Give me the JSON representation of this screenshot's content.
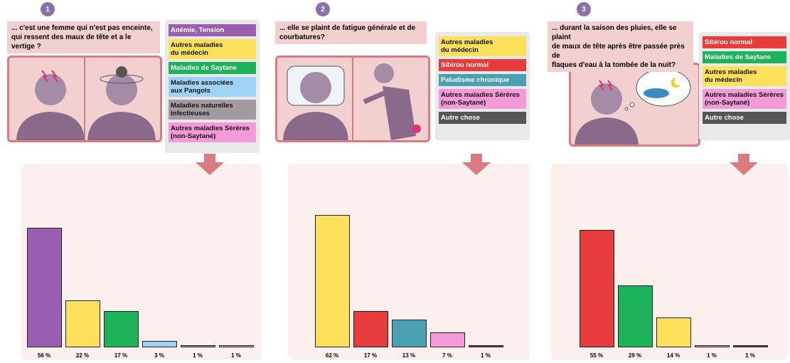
{
  "chart_data": [
    {
      "type": "bar",
      "panel_label": "1",
      "title": "... c'est une femme qui n'est pas enceinte,\nqui ressent des maux de tête et a le vertige ?",
      "categories": [
        "Anémie, Tension",
        "Autres maladies\ndu médecin",
        "Maladies de Saytane",
        "Maladies associées\naux Pangols",
        "Maladies naturelles\ninfectieuses",
        "Autres maladies Sérères\n(non-Saytané)"
      ],
      "colors": [
        "#9a5fb0",
        "#fde05a",
        "#1db35a",
        "#9fd3f5",
        "#a39aa1",
        "#f49ad8"
      ],
      "values": [
        56,
        22,
        17,
        3,
        1,
        1
      ],
      "value_labels": [
        "56 %",
        "22 %",
        "17 %",
        "3 %",
        "1 %",
        "1 %"
      ]
    },
    {
      "type": "bar",
      "panel_label": "2",
      "title": "... elle se plaint de fatigue générale et de\ncourbatures?",
      "categories": [
        "Autres maladies\ndu médecin",
        "Sibirou normal",
        "Paludisme chronique",
        "Autres maladies Sérères\n(non-Saytané)",
        "Autre chose"
      ],
      "colors": [
        "#fde05a",
        "#e63c3c",
        "#4aa0b0",
        "#f49ad8",
        "#555555"
      ],
      "values": [
        62,
        17,
        13,
        7,
        1
      ],
      "value_labels": [
        "62 %",
        "17 %",
        "13 %",
        "7 %",
        "1 %"
      ]
    },
    {
      "type": "bar",
      "panel_label": "3",
      "title": "... durant la saison des pluies, elle se plaint\nde maux de tête après être passée près de\nflaques d'eau à la tombée de la nuit?",
      "categories": [
        "Sibirou normal",
        "Maladies de Saytane",
        "Autres maladies\ndu médecin",
        "Autres maladies Sérères\n(non-Saytané)",
        "Autre chose"
      ],
      "colors": [
        "#e63c3c",
        "#1db35a",
        "#fde05a",
        "#f49ad8",
        "#555555"
      ],
      "values": [
        55,
        29,
        14,
        1,
        1
      ],
      "value_labels": [
        "55 %",
        "29 %",
        "14 %",
        "1 %",
        "1 %"
      ]
    }
  ]
}
